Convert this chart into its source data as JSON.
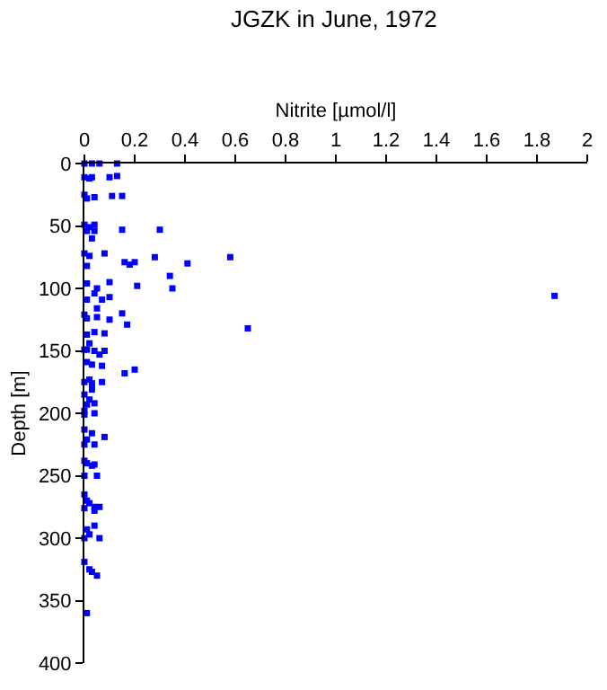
{
  "chart_data": {
    "type": "scatter",
    "title": "JGZK in June, 1972",
    "xlabel": "Nitrite [µmol/l]",
    "ylabel": "Depth [m]",
    "x": [
      0,
      0.03,
      0.06,
      0.13,
      0,
      0.02,
      0.03,
      0.1,
      0.13,
      0,
      0.01,
      0.04,
      0.11,
      0.15,
      0,
      0.02,
      0.04,
      0.04,
      0.01,
      0.03,
      0.15,
      0.3,
      0,
      0.08,
      0.02,
      0.28,
      0.58,
      0.01,
      0.16,
      0.18,
      0.2,
      0.41,
      0.34,
      0.35,
      0.21,
      0.1,
      0.01,
      0.05,
      0.04,
      0.1,
      0.07,
      0.01,
      0.05,
      0,
      0.01,
      0.05,
      0.1,
      0.15,
      0.17,
      0.01,
      0.04,
      0.08,
      0.65,
      1.87,
      0.02,
      0,
      0.01,
      0.04,
      0.08,
      0.06,
      0.03,
      0.01,
      0.07,
      0.16,
      0.2,
      0,
      0.02,
      0.03,
      0.07,
      0.03,
      0,
      0.02,
      0.01,
      0.04,
      0,
      0,
      0.04,
      0,
      0.03,
      0.08,
      0.01,
      0,
      0.04,
      0,
      0.01,
      0.03,
      0.04,
      0.05,
      0,
      0,
      0.01,
      0.02,
      0,
      0.04,
      0.06,
      0.04,
      0.04,
      0.01,
      0.02,
      0,
      0.06,
      0,
      0.02,
      0.03,
      0.05,
      0.01
    ],
    "series": [
      {
        "color": "#0000ff",
        "values": [
          0,
          0,
          0,
          0,
          11,
          12,
          11,
          11,
          10,
          25,
          28,
          27,
          26,
          26,
          49,
          51,
          49,
          54,
          54,
          60,
          53,
          53,
          72,
          72,
          74,
          75,
          75,
          82,
          79,
          81,
          79,
          80,
          90,
          100,
          98,
          95,
          96,
          100,
          104,
          107,
          109,
          109,
          116,
          121,
          124,
          123,
          125,
          120,
          129,
          137,
          135,
          136,
          132,
          106,
          144,
          149,
          149,
          150,
          150,
          153,
          161,
          159,
          162,
          168,
          165,
          175,
          173,
          176,
          175,
          181,
          185,
          189,
          193,
          192,
          198,
          201,
          200,
          213,
          216,
          219,
          221,
          225,
          225,
          238,
          240,
          242,
          241,
          250,
          250,
          265,
          270,
          272,
          276,
          275,
          275,
          278,
          290,
          293,
          297,
          300,
          300,
          319,
          325,
          327,
          330,
          360
        ]
      }
    ],
    "xlim": [
      0,
      2
    ],
    "xticks": [
      0,
      0.2,
      0.4,
      0.6,
      0.8,
      1,
      1.2,
      1.4,
      1.6,
      1.8,
      2
    ],
    "ylim": [
      400,
      0
    ],
    "yticks": [
      0,
      50,
      100,
      150,
      200,
      250,
      300,
      350,
      400
    ],
    "marker": "square"
  }
}
